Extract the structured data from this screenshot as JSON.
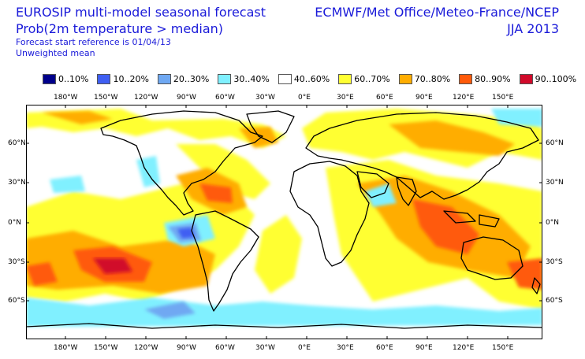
{
  "header": {
    "title_line1": "EUROSIP multi-model seasonal forecast",
    "title_line2": "Prob(2m temperature > median)",
    "start_reference": "Forecast start reference is 01/04/13",
    "mean_type": "Unweighted mean",
    "centres": "ECMWF/Met Office/Meteo-France/NCEP",
    "season": "JJA 2013"
  },
  "legend": [
    {
      "label": "0..10%",
      "color": "#00008b"
    },
    {
      "label": "10..20%",
      "color": "#3f5ff2"
    },
    {
      "label": "20..30%",
      "color": "#6fa8f2"
    },
    {
      "label": "30..40%",
      "color": "#80f0ff"
    },
    {
      "label": "40..60%",
      "color": "#ffffff"
    },
    {
      "label": "60..70%",
      "color": "#ffff33"
    },
    {
      "label": "70..80%",
      "color": "#ffad00"
    },
    {
      "label": "80..90%",
      "color": "#ff5a0a"
    },
    {
      "label": "90..100%",
      "color": "#d10a2a"
    }
  ],
  "axes": {
    "lon_labels": [
      "180°W",
      "150°W",
      "120°W",
      "90°W",
      "60°W",
      "30°W",
      "0°E",
      "30°E",
      "60°E",
      "90°E",
      "120°E",
      "150°E"
    ],
    "lat_labels": [
      "60°N",
      "30°N",
      "0°N",
      "30°S",
      "60°S"
    ]
  }
}
